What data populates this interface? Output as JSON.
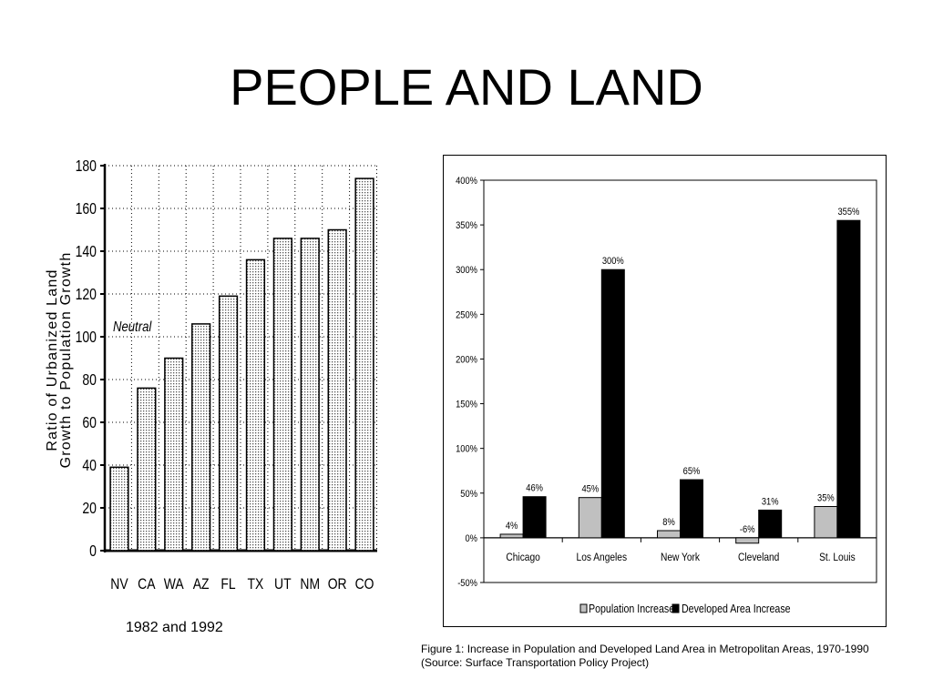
{
  "slide": {
    "title": "PEOPLE AND LAND",
    "left_caption": "1982 and 1992",
    "right_caption_line1": "Figure 1: Increase in Population and Developed Land Area in Metropolitan Areas, 1970-1990",
    "right_caption_line2": "(Source: Surface Transportation Policy Project)"
  },
  "chart_data": [
    {
      "type": "bar",
      "title": "",
      "ylabel_line1": "Ratio of Urbanized Land",
      "ylabel_line2": "Growth to Population Growth",
      "xlabel": "",
      "categories": [
        "NV",
        "CA",
        "WA",
        "AZ",
        "FL",
        "TX",
        "UT",
        "NM",
        "OR",
        "CO"
      ],
      "values": [
        39,
        76,
        90,
        106,
        119,
        136,
        146,
        146,
        150,
        174
      ],
      "ylim": [
        0,
        180
      ],
      "yticks": [
        0,
        20,
        40,
        60,
        80,
        100,
        120,
        140,
        160,
        180
      ],
      "grid": true,
      "annotation": {
        "text": "Neutral",
        "value": 100
      },
      "bar_fill": "dotted light gray",
      "colors": {
        "bar_outline": "#000000",
        "bar_fill": "#d9d9d9"
      }
    },
    {
      "type": "bar",
      "title": "",
      "categories": [
        "Chicago",
        "Los Angeles",
        "New York",
        "Cleveland",
        "St. Louis"
      ],
      "series": [
        {
          "name": "Population Increase",
          "values": [
            4,
            45,
            8,
            -6,
            35
          ],
          "color": "#c0c0c0"
        },
        {
          "name": "Developed Area Increase",
          "values": [
            46,
            300,
            65,
            31,
            355
          ],
          "color": "#000000"
        }
      ],
      "data_labels": {
        "Population Increase": [
          "4%",
          "45%",
          "8%",
          "-6%",
          "35%"
        ],
        "Developed Area Increase": [
          "46%",
          "300%",
          "65%",
          "31%",
          "355%"
        ]
      },
      "ylim": [
        -50,
        400
      ],
      "yticks": [
        -50,
        0,
        50,
        100,
        150,
        200,
        250,
        300,
        350,
        400
      ],
      "ytick_labels": [
        "-50%",
        "0%",
        "50%",
        "100%",
        "150%",
        "200%",
        "250%",
        "300%",
        "350%",
        "400%"
      ],
      "grid": false,
      "legend_position": "bottom"
    }
  ]
}
